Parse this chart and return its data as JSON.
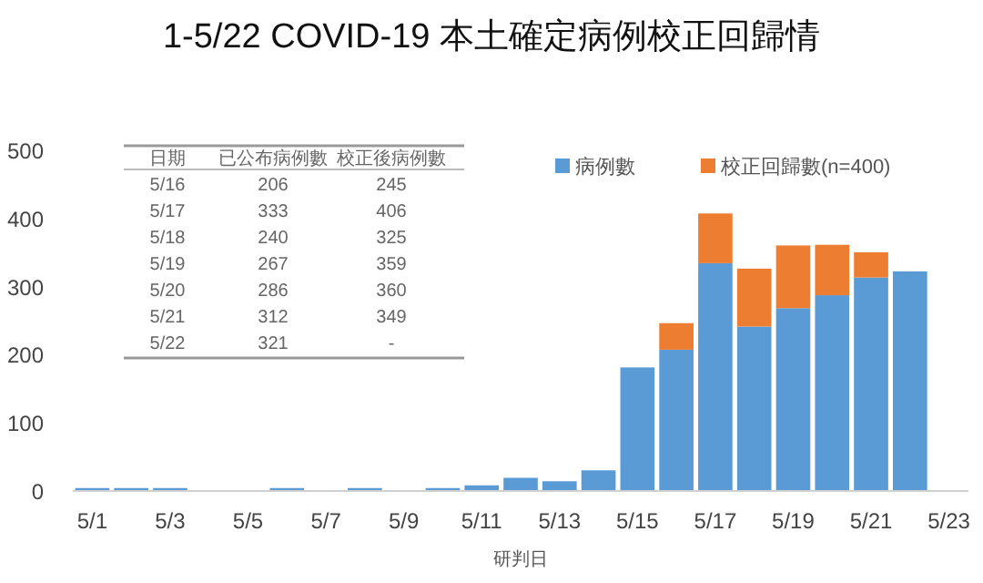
{
  "chart_data": {
    "type": "bar",
    "title": "1-5/22 COVID-19 本土確定病例校正回歸情",
    "xlabel": "研判日",
    "categories": [
      "5/1",
      null,
      "5/3",
      null,
      "5/5",
      null,
      "5/7",
      null,
      "5/9",
      null,
      "5/11",
      null,
      "5/13",
      null,
      "5/15",
      null,
      "5/17",
      null,
      "5/19",
      null,
      "5/21",
      null,
      "5/23"
    ],
    "series": [
      {
        "name": "病例數",
        "color": "#5b9bd5",
        "values": [
          3,
          3,
          3,
          0,
          0,
          3,
          0,
          3,
          0,
          3,
          7,
          18,
          13,
          29,
          180,
          206,
          333,
          240,
          267,
          286,
          312,
          321,
          null
        ]
      },
      {
        "name": "校正回歸數(n=400)",
        "color": "#ed7d31",
        "values": [
          null,
          null,
          null,
          null,
          null,
          null,
          null,
          null,
          null,
          null,
          null,
          null,
          null,
          null,
          null,
          39,
          73,
          85,
          92,
          74,
          37,
          null,
          null
        ]
      }
    ],
    "stacked": true,
    "ylim": [
      0,
      500
    ],
    "yticks": [
      0,
      100,
      200,
      300,
      400,
      500
    ],
    "legend": "top right",
    "annotations": [
      "日期",
      "已公布病例數",
      "校正後病例數",
      "5/16",
      "206",
      "245",
      "5/17",
      "333",
      "406",
      "5/18",
      "240",
      "325",
      "5/19",
      "267",
      "359",
      "5/20",
      "286",
      "360",
      "5/21",
      "312",
      "349",
      "5/22",
      "321",
      "-"
    ]
  }
}
